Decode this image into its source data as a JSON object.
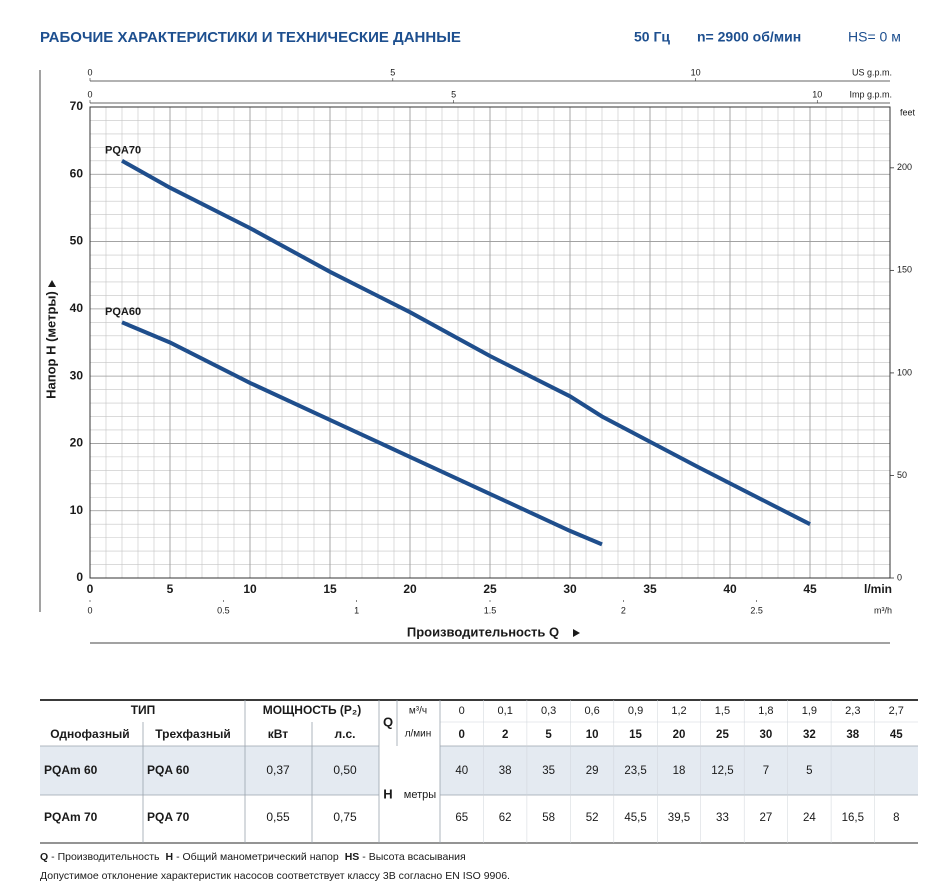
{
  "header": {
    "title": "РАБОЧИЕ ХАРАКТЕРИСТИКИ И ТЕХНИЧЕСКИЕ ДАННЫЕ",
    "frequency": "50 Гц",
    "speed": "n= 2900 об/мин",
    "suction": "HS= 0 м"
  },
  "chart_data": {
    "type": "line",
    "y_label": "Напор H (метры)",
    "x_label": "Производительность Q",
    "x_unit": "l/min",
    "xlim": [
      0,
      50
    ],
    "xticks": [
      0,
      5,
      10,
      15,
      20,
      25,
      30,
      35,
      40,
      45
    ],
    "ylim": [
      0,
      70
    ],
    "yticks": [
      0,
      10,
      20,
      30,
      40,
      50,
      60,
      70
    ],
    "y2_label": "feet",
    "y2lim": [
      0,
      229.66
    ],
    "y2ticks": [
      0,
      50,
      100,
      150,
      200
    ],
    "secondary_x_axes": [
      {
        "label": "m³/h",
        "position": "bottom",
        "xlim": [
          0,
          3
        ],
        "xticks": [
          0,
          0.5,
          1,
          1.5,
          2,
          2.5
        ]
      },
      {
        "label": "US g.p.m.",
        "position": "top",
        "xlim": [
          0,
          13.21
        ],
        "xticks": [
          0,
          5,
          10
        ]
      },
      {
        "label": "Imp g.p.m.",
        "position": "top",
        "xlim": [
          0,
          11
        ],
        "xticks": [
          0,
          5,
          10
        ]
      }
    ],
    "grid": true,
    "series": [
      {
        "name": "PQA70",
        "color": "#1f4e8c",
        "x": [
          2,
          5,
          10,
          15,
          20,
          25,
          30,
          32,
          38,
          45
        ],
        "values": [
          62,
          58,
          52,
          45.5,
          39.5,
          33,
          27,
          24,
          16.5,
          8
        ]
      },
      {
        "name": "PQA60",
        "color": "#1f4e8c",
        "x": [
          2,
          5,
          10,
          15,
          20,
          25,
          30,
          32
        ],
        "values": [
          38,
          35,
          29,
          23.5,
          18,
          12.5,
          7,
          5
        ]
      }
    ]
  },
  "table": {
    "head": {
      "type": "ТИП",
      "power": "МОЩНОСТЬ (P₂)",
      "q": "Q",
      "q_unit_1": "м³/ч",
      "q_unit_2": "л/мин",
      "single_phase": "Однофазный",
      "three_phase": "Трехфазный",
      "kw": "кВт",
      "hp": "л.с.",
      "h": "H",
      "h_unit": "метры"
    },
    "flow_m3h": [
      "0",
      "0,1",
      "0,3",
      "0,6",
      "0,9",
      "1,2",
      "1,5",
      "1,8",
      "1,9",
      "2,3",
      "2,7"
    ],
    "flow_lmin": [
      "0",
      "2",
      "5",
      "10",
      "15",
      "20",
      "25",
      "30",
      "32",
      "38",
      "45"
    ],
    "rows": [
      {
        "single": "PQAm 60",
        "three": "PQA 60",
        "kw": "0,37",
        "hp": "0,50",
        "head": [
          "40",
          "38",
          "35",
          "29",
          "23,5",
          "18",
          "12,5",
          "7",
          "5",
          null,
          null
        ]
      },
      {
        "single": "PQAm 70",
        "three": "PQA 70",
        "kw": "0,55",
        "hp": "0,75",
        "head": [
          "65",
          "62",
          "58",
          "52",
          "45,5",
          "39,5",
          "33",
          "27",
          "24",
          "16,5",
          "8"
        ]
      }
    ]
  },
  "footer": {
    "legend": [
      {
        "symbol": "Q",
        "text": "- Производительность"
      },
      {
        "symbol": "H",
        "text": "- Общий манометрический напор"
      },
      {
        "symbol": "HS",
        "text": "- Высота всасывания"
      }
    ],
    "note": "Допустимое отклонение характеристик насосов соответствует классу 3В согласно EN ISO 9906."
  }
}
